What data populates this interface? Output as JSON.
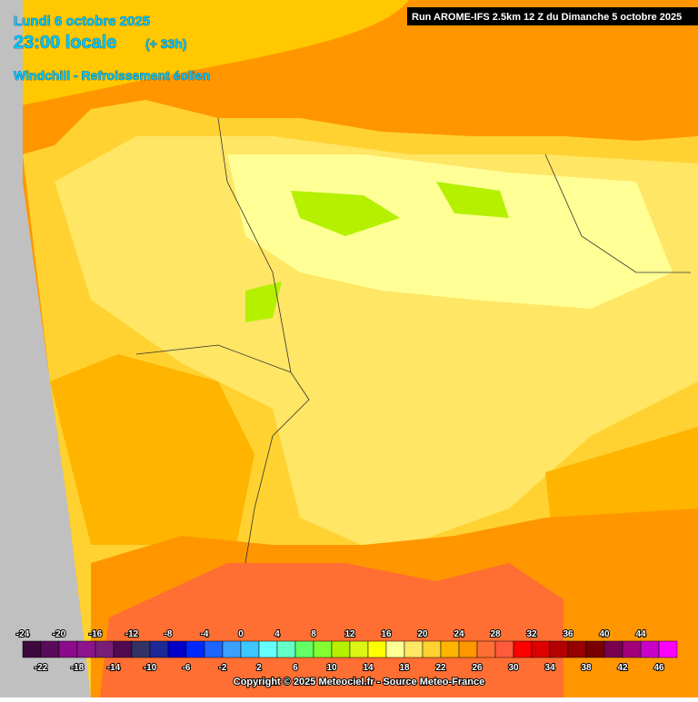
{
  "header": {
    "date": "Lundi 6 octobre 2025",
    "time": "23:00 locale",
    "lead": "(+ 33h)",
    "product": "Windchill - Refroissement éolien",
    "run": "Run AROME-IFS 2.5km 12 Z du Dimanche 5 octobre 2025"
  },
  "legend": {
    "values": [
      -24,
      -22,
      -20,
      -18,
      -16,
      -14,
      -12,
      -10,
      -8,
      -6,
      -4,
      -2,
      0,
      2,
      4,
      6,
      8,
      10,
      12,
      14,
      16,
      18,
      20,
      22,
      24,
      26,
      28,
      30,
      32,
      34,
      36,
      38,
      40,
      42,
      44,
      46
    ],
    "colors": [
      "#3c0a3c",
      "#5a0a5a",
      "#8c0a8c",
      "#8c148c",
      "#781e78",
      "#500a50",
      "#323264",
      "#1e2896",
      "#0000c8",
      "#0028ff",
      "#1e64ff",
      "#3ca0ff",
      "#3cc8ff",
      "#64ffff",
      "#64ffc8",
      "#64ff64",
      "#82ff32",
      "#b4f000",
      "#dcf514",
      "#ffff00",
      "#ffff96",
      "#ffe664",
      "#ffd232",
      "#ffb400",
      "#ff9600",
      "#ff6e32",
      "#ff5a3c",
      "#ff0000",
      "#dc0000",
      "#b40000",
      "#960000",
      "#780000",
      "#780050",
      "#a00078",
      "#c800c8",
      "#ff00ff",
      "#ff80ff"
    ]
  },
  "copyright": "Copyright © 2025 Meteociel.fr - Source Meteo-France"
}
